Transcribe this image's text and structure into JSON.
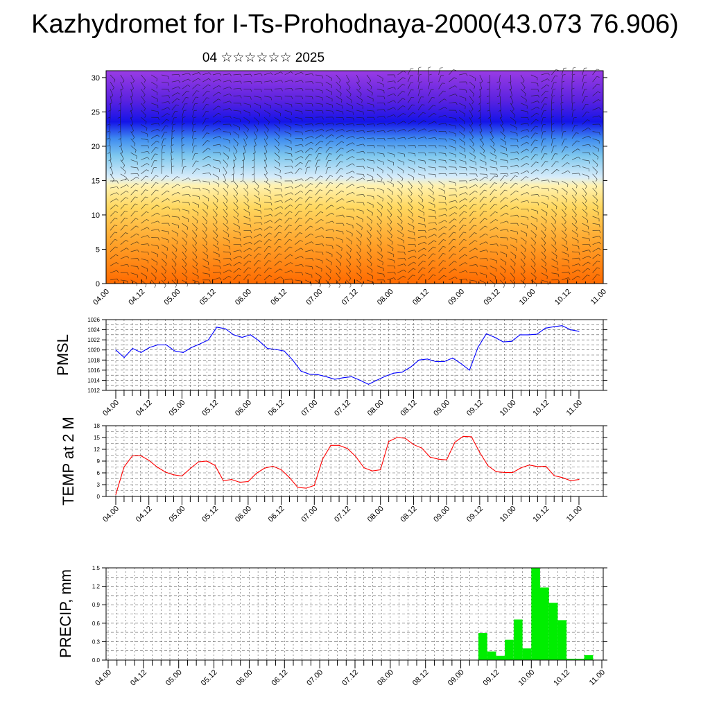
{
  "title": "Kazhydromet for I-Ts-Prohodnaya-2000(43.073 76.906)",
  "subtitle": "04 ☆☆☆☆☆☆ 2025",
  "colors": {
    "pmsl": "#0000ff",
    "temp": "#ff0000",
    "precip": "#00ee00",
    "axis": "#000000",
    "grid": "#555555"
  },
  "chart_data": [
    {
      "type": "heatmap",
      "name": "vertical-cross-section",
      "title": "",
      "xlabel": "",
      "ylabel": "",
      "x_tick_labels": [
        "04.00",
        "04.12",
        "05.00",
        "05.12",
        "06.00",
        "06.12",
        "07.00",
        "07.12",
        "08.00",
        "08.12",
        "09.00",
        "09.12",
        "10.00",
        "10.12",
        "11.00"
      ],
      "y_ticks": [
        0,
        5,
        10,
        15,
        20,
        25,
        30
      ],
      "ylim": [
        0,
        31
      ],
      "colormap": "orange-yellow-lightblue-blue-purple with wind barbs",
      "isoline_note": "freezing level rises from about 14 at 04.00 to about 16.5 near 07.12"
    },
    {
      "type": "line",
      "name": "pmsl",
      "ylabel": "PMSL",
      "y_ticks": [
        1012,
        1014,
        1016,
        1018,
        1020,
        1022,
        1024,
        1026
      ],
      "ylim": [
        1012,
        1026
      ],
      "x_tick_labels": [
        "04.00",
        "04.12",
        "05.00",
        "05.12",
        "06.00",
        "06.12",
        "07.00",
        "07.12",
        "08.00",
        "08.12",
        "09.00",
        "09.12",
        "10.00",
        "10.12",
        "11.00"
      ],
      "values": [
        1020.0,
        1018.5,
        1020.3,
        1019.5,
        1020.5,
        1021.0,
        1021.0,
        1019.8,
        1019.5,
        1020.5,
        1021.2,
        1022.0,
        1024.5,
        1024.2,
        1023.0,
        1022.5,
        1023.0,
        1021.8,
        1020.3,
        1020.1,
        1019.8,
        1018.0,
        1015.8,
        1015.2,
        1015.1,
        1014.7,
        1014.2,
        1014.5,
        1014.7,
        1014.0,
        1013.2,
        1014.0,
        1014.8,
        1015.4,
        1015.6,
        1016.6,
        1018.0,
        1018.2,
        1017.7,
        1017.7,
        1018.4,
        1017.3,
        1016.0,
        1020.5,
        1023.2,
        1022.5,
        1021.6,
        1021.7,
        1023.0,
        1023.0,
        1023.1,
        1024.3,
        1024.6,
        1024.8,
        1024.0,
        1023.7
      ]
    },
    {
      "type": "line",
      "name": "temp-2m",
      "ylabel": "TEMP at 2 M",
      "y_ticks": [
        0,
        3,
        6,
        9,
        12,
        15,
        18
      ],
      "ylim": [
        0,
        18
      ],
      "x_tick_labels": [
        "04.00",
        "04.12",
        "05.00",
        "05.12",
        "06.00",
        "06.12",
        "07.00",
        "07.12",
        "08.00",
        "08.12",
        "09.00",
        "09.12",
        "10.00",
        "10.12",
        "11.00"
      ],
      "values": [
        0.5,
        7.5,
        10.3,
        10.4,
        9.2,
        7.5,
        6.2,
        5.5,
        5.2,
        7.1,
        8.8,
        9.0,
        7.9,
        4.0,
        4.3,
        3.6,
        3.8,
        5.9,
        7.2,
        7.7,
        6.8,
        4.8,
        2.3,
        2.1,
        2.8,
        9.5,
        13.0,
        13.0,
        12.2,
        10.2,
        7.3,
        6.5,
        6.8,
        14.0,
        15.0,
        14.8,
        13.2,
        12.3,
        10.0,
        9.5,
        9.3,
        13.8,
        15.3,
        15.2,
        11.2,
        7.8,
        6.3,
        6.1,
        6.1,
        7.3,
        8.0,
        7.6,
        7.7,
        5.3,
        4.8,
        4.0,
        4.3
      ]
    },
    {
      "type": "bar",
      "name": "precip",
      "ylabel": "PRECIP, mm",
      "y_ticks": [
        "0.0",
        "0.3",
        "0.6",
        "0.9",
        "1.2",
        "1.5"
      ],
      "ylim": [
        0,
        1.5
      ],
      "x_tick_labels": [
        "04.00",
        "04.12",
        "05.00",
        "05.12",
        "06.00",
        "06.12",
        "07.00",
        "07.12",
        "08.00",
        "08.12",
        "09.00",
        "09.12",
        "10.00",
        "10.12",
        "11.00"
      ],
      "values": [
        0,
        0,
        0,
        0,
        0,
        0,
        0,
        0,
        0,
        0,
        0,
        0,
        0,
        0,
        0,
        0,
        0,
        0,
        0,
        0,
        0,
        0,
        0,
        0,
        0,
        0,
        0,
        0,
        0,
        0,
        0,
        0,
        0,
        0,
        0,
        0,
        0,
        0,
        0,
        0,
        0,
        0,
        0.44,
        0.14,
        0.07,
        0.33,
        0.66,
        0.19,
        1.5,
        1.18,
        0.93,
        0.65,
        0.02,
        0.02,
        0.08,
        0
      ]
    }
  ]
}
